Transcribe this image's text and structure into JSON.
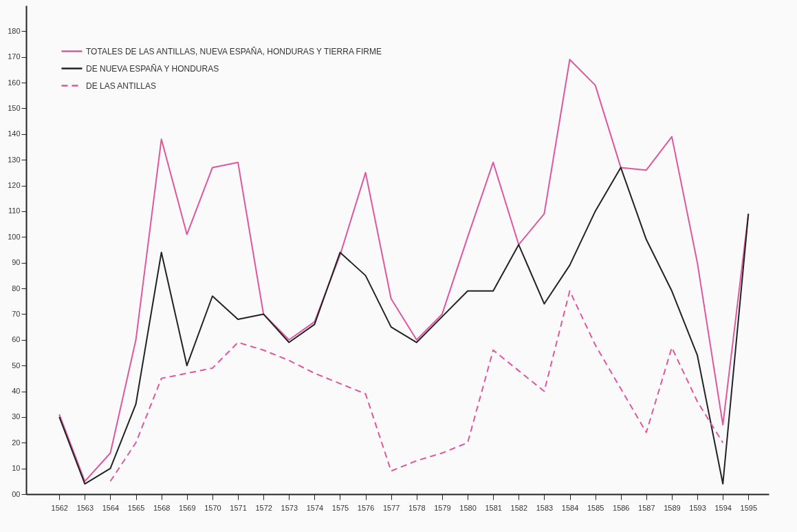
{
  "chart_data": {
    "type": "line",
    "categories": [
      "1562",
      "1563",
      "1564",
      "1565",
      "1568",
      "1569",
      "1570",
      "1571",
      "1572",
      "1573",
      "1574",
      "1575",
      "1576",
      "1577",
      "1578",
      "1579",
      "1580",
      "1581",
      "1582",
      "1583",
      "1584",
      "1585",
      "1586",
      "1587",
      "1589",
      "1593",
      "1594",
      "1595"
    ],
    "series": [
      {
        "name": "TOTALES DE LAS ANTILLAS, NUEVA ESPAÑA, HONDURAS Y TIERRA FIRME",
        "color": "#e0559e",
        "line_style": "solid",
        "values": [
          31,
          5,
          16,
          60,
          138,
          101,
          127,
          129,
          70,
          60,
          67,
          93,
          125,
          76,
          60,
          70,
          100,
          129,
          97,
          109,
          169,
          159,
          127,
          126,
          139,
          90,
          27,
          109
        ]
      },
      {
        "name": "DE NUEVA ESPAÑA Y HONDURAS",
        "color": "#222222",
        "line_style": "solid",
        "values": [
          30,
          4,
          10,
          35,
          94,
          50,
          77,
          68,
          70,
          59,
          66,
          94,
          85,
          65,
          59,
          69,
          79,
          79,
          97,
          74,
          89,
          110,
          127,
          99,
          79,
          54,
          4,
          109
        ]
      },
      {
        "name": "DE LAS ANTILLAS",
        "color": "#e0559e",
        "line_style": "dashed",
        "values": [
          null,
          null,
          5,
          20,
          45,
          47,
          49,
          59,
          56,
          52,
          47,
          43,
          39,
          9,
          13,
          16,
          20,
          56,
          48,
          40,
          79,
          58,
          41,
          24,
          57,
          36,
          20,
          null
        ]
      }
    ],
    "ylim": [
      0,
      190
    ],
    "yticks": [
      {
        "value": 0,
        "label": "00"
      },
      10,
      20,
      30,
      40,
      50,
      60,
      70,
      80,
      90,
      100,
      110,
      120,
      130,
      140,
      150,
      160,
      170,
      180
    ],
    "grid": false,
    "legend": "top left",
    "marker": "none"
  }
}
